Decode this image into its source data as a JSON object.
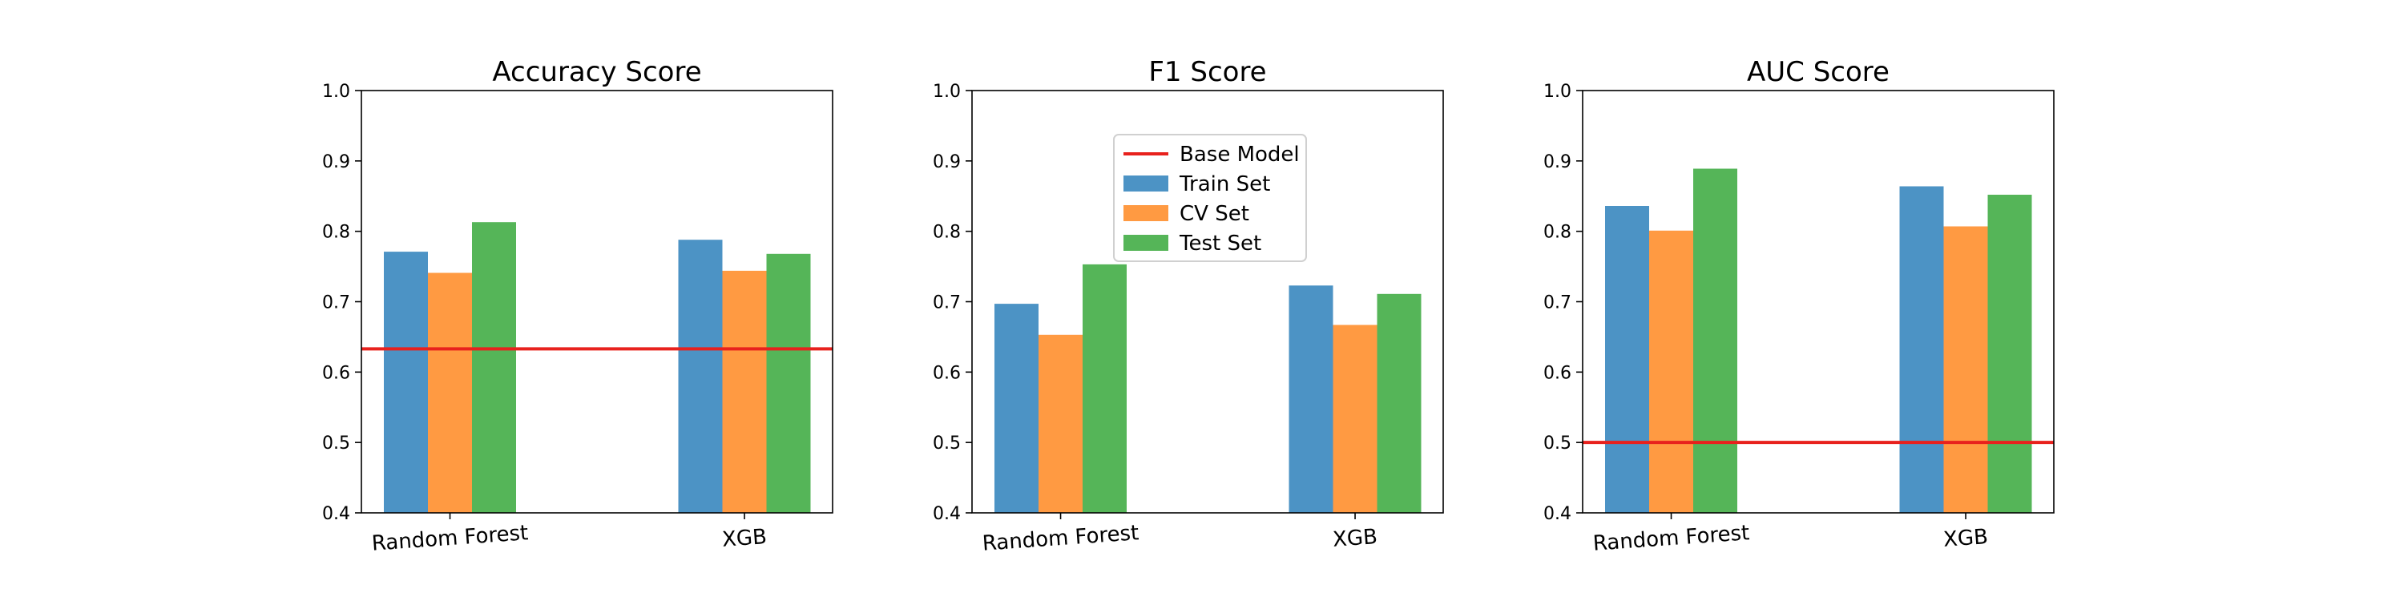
{
  "colors": {
    "train": "#4c93c5",
    "cv": "#ff9a42",
    "test": "#55b558",
    "baseline": "#e8211d",
    "axis": "#000000"
  },
  "legend": {
    "placement": "upper-center of F1 Score panel",
    "entries": [
      {
        "label": "Base Model",
        "kind": "line",
        "color_key": "baseline"
      },
      {
        "label": "Train Set",
        "kind": "patch",
        "color_key": "train"
      },
      {
        "label": "CV Set",
        "kind": "patch",
        "color_key": "cv"
      },
      {
        "label": "Test Set",
        "kind": "patch",
        "color_key": "test"
      }
    ]
  },
  "chart_data": [
    {
      "type": "bar",
      "title": "Accuracy Score",
      "categories": [
        "Random Forest",
        "XGB"
      ],
      "ylim": [
        0.4,
        1.0
      ],
      "yticks": [
        "0.4",
        "0.5",
        "0.6",
        "0.7",
        "0.8",
        "0.9",
        "1.0"
      ],
      "series": [
        {
          "name": "Train Set",
          "values": [
            0.771,
            0.788
          ]
        },
        {
          "name": "CV Set",
          "values": [
            0.741,
            0.744
          ]
        },
        {
          "name": "Test Set",
          "values": [
            0.813,
            0.768
          ]
        }
      ],
      "baseline": {
        "name": "Base Model",
        "value": 0.633
      },
      "grid": false
    },
    {
      "type": "bar",
      "title": "F1 Score",
      "categories": [
        "Random Forest",
        "XGB"
      ],
      "ylim": [
        0.4,
        1.0
      ],
      "yticks": [
        "0.4",
        "0.5",
        "0.6",
        "0.7",
        "0.8",
        "0.9",
        "1.0"
      ],
      "series": [
        {
          "name": "Train Set",
          "values": [
            0.697,
            0.723
          ]
        },
        {
          "name": "CV Set",
          "values": [
            0.653,
            0.667
          ]
        },
        {
          "name": "Test Set",
          "values": [
            0.753,
            0.711
          ]
        }
      ],
      "baseline": null,
      "grid": false
    },
    {
      "type": "bar",
      "title": "AUC Score",
      "categories": [
        "Random Forest",
        "XGB"
      ],
      "ylim": [
        0.4,
        1.0
      ],
      "yticks": [
        "0.4",
        "0.5",
        "0.6",
        "0.7",
        "0.8",
        "0.9",
        "1.0"
      ],
      "series": [
        {
          "name": "Train Set",
          "values": [
            0.836,
            0.864
          ]
        },
        {
          "name": "CV Set",
          "values": [
            0.801,
            0.807
          ]
        },
        {
          "name": "Test Set",
          "values": [
            0.889,
            0.852
          ]
        }
      ],
      "baseline": {
        "name": "Base Model",
        "value": 0.5
      },
      "grid": false
    }
  ]
}
